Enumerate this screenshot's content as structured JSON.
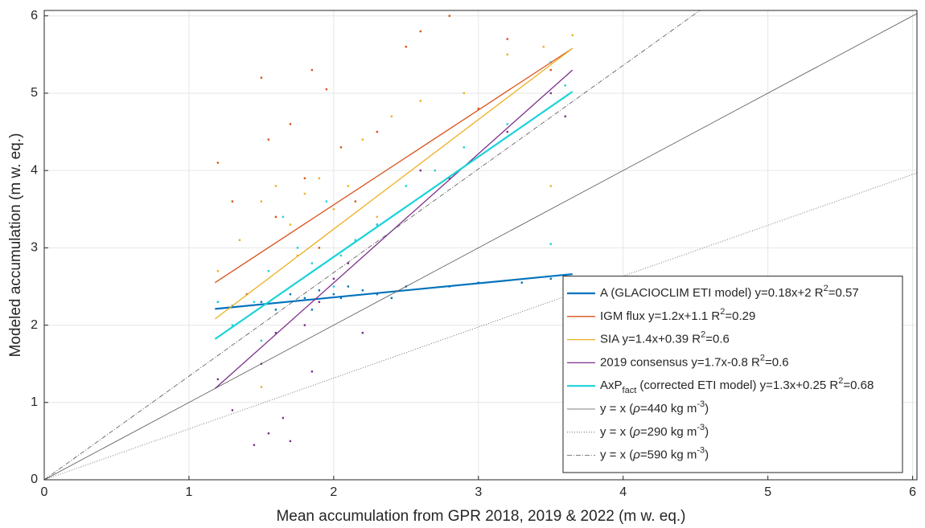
{
  "chart_data": {
    "type": "scatter",
    "xlabel": "Mean accumulation from GPR 2018, 2019 & 2022 (m w. eq.)",
    "ylabel": "Modeled accumulation (m w. eq.)",
    "xlim": [
      0,
      6.03
    ],
    "ylim": [
      0,
      6.07
    ],
    "xticks": [
      0,
      1,
      2,
      3,
      4,
      5,
      6
    ],
    "yticks": [
      0,
      1,
      2,
      3,
      4,
      5,
      6
    ],
    "grid": true,
    "legend": "lower right",
    "series": [
      {
        "kind": "scatter",
        "color": "#0072bd",
        "x": [
          1.2,
          1.3,
          1.5,
          1.7,
          1.8,
          1.9,
          2.0,
          2.1,
          2.2,
          2.3,
          2.5,
          2.8,
          3.0,
          3.3,
          3.5,
          1.85,
          2.05,
          2.4,
          1.6,
          3.6
        ],
        "values": [
          2.3,
          2.25,
          2.3,
          2.4,
          2.35,
          2.45,
          2.4,
          2.5,
          2.45,
          2.4,
          2.5,
          2.5,
          2.55,
          2.55,
          2.6,
          2.2,
          2.35,
          2.35,
          2.2,
          2.55
        ]
      },
      {
        "kind": "scatter",
        "color": "#d95319",
        "x": [
          1.2,
          1.3,
          1.5,
          1.55,
          1.7,
          1.8,
          1.85,
          1.95,
          2.05,
          2.15,
          2.3,
          2.5,
          2.6,
          2.8,
          3.0,
          3.2,
          1.6,
          1.4,
          1.9,
          3.5
        ],
        "values": [
          4.1,
          3.6,
          5.2,
          4.4,
          4.6,
          3.9,
          5.3,
          5.05,
          4.3,
          3.6,
          4.5,
          5.6,
          5.8,
          6.0,
          4.8,
          5.7,
          3.4,
          2.4,
          3.0,
          5.3
        ]
      },
      {
        "kind": "scatter",
        "color": "#edb120",
        "x": [
          1.2,
          1.35,
          1.5,
          1.6,
          1.7,
          1.8,
          1.9,
          2.0,
          2.1,
          2.2,
          2.3,
          2.4,
          2.6,
          2.9,
          3.2,
          3.45,
          3.65,
          1.5,
          1.75,
          3.5
        ],
        "values": [
          2.7,
          3.1,
          3.6,
          3.8,
          3.3,
          3.7,
          3.9,
          3.5,
          3.8,
          4.4,
          3.4,
          4.7,
          4.9,
          5.0,
          5.5,
          5.6,
          5.75,
          1.2,
          2.9,
          3.8
        ]
      },
      {
        "kind": "scatter",
        "color": "#7e2f8e",
        "x": [
          1.2,
          1.3,
          1.45,
          1.55,
          1.65,
          1.7,
          1.5,
          1.6,
          1.8,
          1.9,
          2.0,
          2.1,
          2.2,
          2.3,
          2.6,
          2.8,
          3.2,
          3.5,
          3.6,
          1.85
        ],
        "values": [
          1.3,
          0.9,
          0.45,
          0.6,
          0.8,
          0.5,
          1.5,
          1.9,
          2.0,
          2.3,
          2.6,
          2.8,
          1.9,
          3.3,
          4.0,
          3.9,
          4.5,
          5.0,
          4.7,
          1.4
        ]
      },
      {
        "kind": "scatter",
        "color": "#1ad3d8",
        "x": [
          1.2,
          1.3,
          1.45,
          1.55,
          1.65,
          1.75,
          1.85,
          1.95,
          2.05,
          2.15,
          2.3,
          2.5,
          2.7,
          2.9,
          3.2,
          3.5,
          3.6,
          1.5,
          3.5,
          2.0
        ],
        "values": [
          2.3,
          2.0,
          2.3,
          2.7,
          3.4,
          3.0,
          2.8,
          3.6,
          2.9,
          3.1,
          3.3,
          3.8,
          4.0,
          4.3,
          4.6,
          5.4,
          5.1,
          1.8,
          3.05,
          2.5
        ]
      },
      {
        "kind": "line",
        "color": "#0072bd",
        "width": 2.2,
        "style": "solid",
        "name_parts": [
          {
            "text": "A (GLACIOCLIM ETI model) y=0.18x+2 R",
            "style": "normal"
          },
          {
            "text": "2",
            "style": "sup"
          },
          {
            "text": "=0.57",
            "style": "normal"
          }
        ],
        "x": [
          1.18,
          3.65
        ],
        "values": [
          2.21,
          2.66
        ]
      },
      {
        "kind": "line",
        "color": "#d95319",
        "width": 1.3,
        "style": "solid",
        "name_parts": [
          {
            "text": "IGM flux y=1.2x+1.1 R",
            "style": "normal"
          },
          {
            "text": "2",
            "style": "sup"
          },
          {
            "text": "=0.29",
            "style": "normal"
          }
        ],
        "x": [
          1.18,
          3.65
        ],
        "values": [
          2.55,
          5.58
        ]
      },
      {
        "kind": "line",
        "color": "#edb120",
        "width": 1.3,
        "style": "solid",
        "name_parts": [
          {
            "text": "SIA y=1.4x+0.39 R",
            "style": "normal"
          },
          {
            "text": "2",
            "style": "sup"
          },
          {
            "text": "=0.6",
            "style": "normal"
          }
        ],
        "x": [
          1.18,
          3.65
        ],
        "values": [
          2.08,
          5.58
        ]
      },
      {
        "kind": "line",
        "color": "#7e2f8e",
        "width": 1.3,
        "style": "solid",
        "name_parts": [
          {
            "text": "2019 consensus y=1.7x-0.8 R",
            "style": "normal"
          },
          {
            "text": "2",
            "style": "sup"
          },
          {
            "text": "=0.6",
            "style": "normal"
          }
        ],
        "x": [
          1.18,
          3.65
        ],
        "values": [
          1.18,
          5.3
        ]
      },
      {
        "kind": "line",
        "color": "#1ad3d8",
        "width": 2.2,
        "style": "solid",
        "name_parts": [
          {
            "text": "AxP",
            "style": "normal"
          },
          {
            "text": "fact",
            "style": "sub"
          },
          {
            "text": " (corrected ETI model) y=1.3x+0.25 R",
            "style": "normal"
          },
          {
            "text": "2",
            "style": "sup"
          },
          {
            "text": "=0.68",
            "style": "normal"
          }
        ],
        "x": [
          1.18,
          3.65
        ],
        "values": [
          1.82,
          5.02
        ]
      },
      {
        "kind": "line",
        "color": "#555555",
        "width": 0.8,
        "style": "solid",
        "name_parts": [
          {
            "text": "y = x (",
            "style": "normal"
          },
          {
            "text": "ρ",
            "style": "italic"
          },
          {
            "text": "=440 kg m",
            "style": "normal"
          },
          {
            "text": "-3",
            "style": "sup"
          },
          {
            "text": ")",
            "style": "normal"
          }
        ],
        "x": [
          0,
          6.03
        ],
        "values": [
          0,
          6.03
        ]
      },
      {
        "kind": "line",
        "color": "#555555",
        "width": 0.8,
        "style": "dotted",
        "name_parts": [
          {
            "text": "y = x (",
            "style": "normal"
          },
          {
            "text": "ρ",
            "style": "italic"
          },
          {
            "text": "=290 kg m",
            "style": "normal"
          },
          {
            "text": "-3",
            "style": "sup"
          },
          {
            "text": ")",
            "style": "normal"
          }
        ],
        "x": [
          0,
          6.03
        ],
        "values": [
          0,
          3.97
        ]
      },
      {
        "kind": "line",
        "color": "#555555",
        "width": 0.8,
        "style": "dashdot",
        "name_parts": [
          {
            "text": "y = x (",
            "style": "normal"
          },
          {
            "text": "ρ",
            "style": "italic"
          },
          {
            "text": "=590 kg m",
            "style": "normal"
          },
          {
            "text": "-3",
            "style": "sup"
          },
          {
            "text": ")",
            "style": "normal"
          }
        ],
        "x": [
          0,
          4.53
        ],
        "values": [
          0,
          6.07
        ]
      }
    ]
  }
}
